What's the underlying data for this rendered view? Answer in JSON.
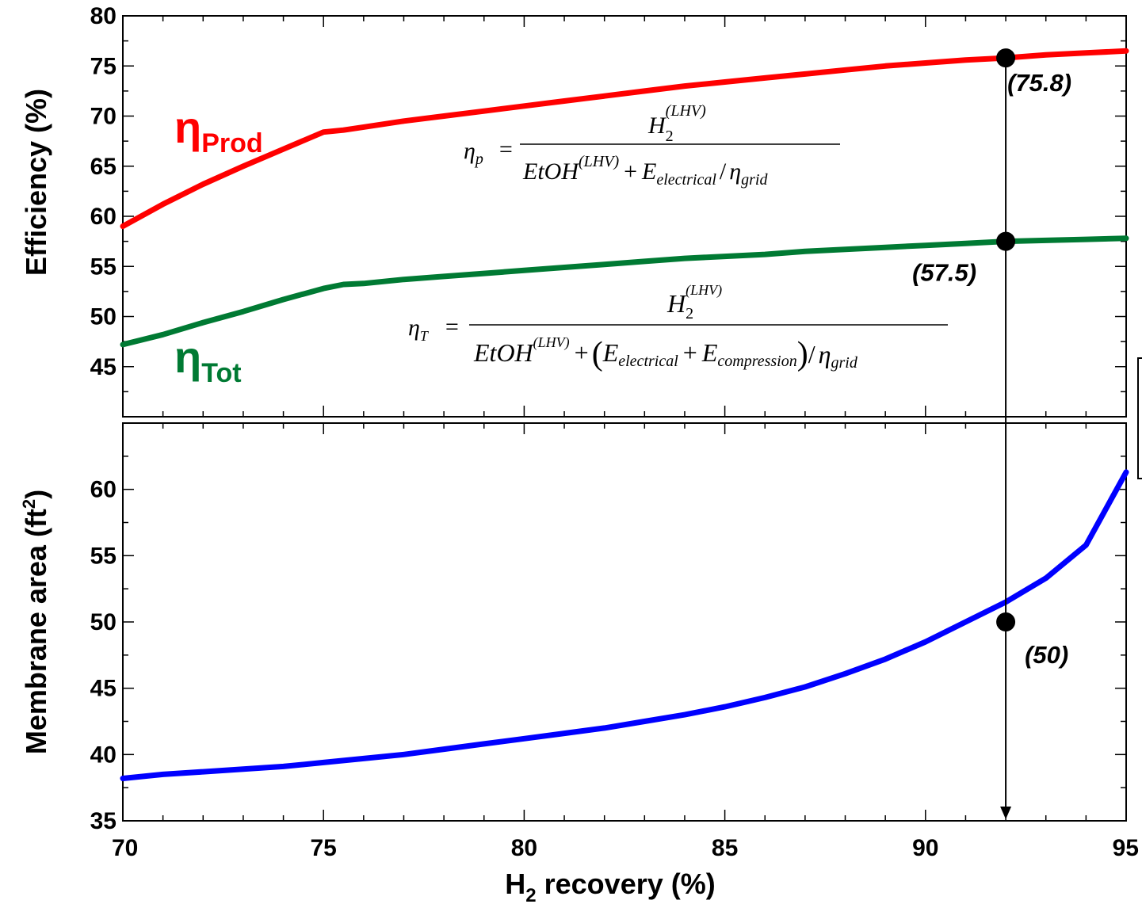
{
  "chart_data": [
    {
      "type": "line",
      "panel": "top",
      "title": "",
      "xlabel": "",
      "ylabel": "Efficiency (%)",
      "xlim": [
        70,
        95
      ],
      "ylim": [
        40,
        80
      ],
      "y_ticks": [
        "45",
        "50",
        "55",
        "60",
        "65",
        "70",
        "75",
        "80"
      ],
      "grid": false,
      "series": [
        {
          "name": "ηProd",
          "label_main": "η",
          "label_sub": "Prod",
          "color": "#ff0000",
          "x": [
            70,
            71,
            72,
            73,
            74,
            75,
            75.5,
            76,
            77,
            78,
            79,
            80,
            81,
            82,
            83,
            84,
            85,
            86,
            87,
            88,
            89,
            90,
            91,
            92,
            93,
            94,
            95
          ],
          "y": [
            59,
            61.2,
            63.2,
            65,
            66.7,
            68.4,
            68.6,
            68.9,
            69.5,
            70,
            70.5,
            71,
            71.5,
            72,
            72.5,
            73,
            73.4,
            73.8,
            74.2,
            74.6,
            75,
            75.3,
            75.6,
            75.8,
            76.1,
            76.3,
            76.5
          ]
        },
        {
          "name": "ηTot",
          "label_main": "η",
          "label_sub": "Tot",
          "color": "#007a33",
          "x": [
            70,
            71,
            72,
            73,
            74,
            75,
            75.5,
            76,
            77,
            78,
            79,
            80,
            81,
            82,
            83,
            84,
            85,
            86,
            87,
            88,
            89,
            90,
            91,
            92,
            93,
            94,
            95
          ],
          "y": [
            47.2,
            48.2,
            49.4,
            50.5,
            51.7,
            52.8,
            53.2,
            53.3,
            53.7,
            54,
            54.3,
            54.6,
            54.9,
            55.2,
            55.5,
            55.8,
            56,
            56.2,
            56.5,
            56.7,
            56.9,
            57.1,
            57.3,
            57.5,
            57.6,
            57.7,
            57.8
          ]
        }
      ]
    },
    {
      "type": "line",
      "panel": "bottom",
      "title": "",
      "xlabel_main": "H",
      "xlabel_sub": "2",
      "xlabel_rest": " recovery (%)",
      "ylabel_main": "Membrane area (ft",
      "ylabel_sup": "2",
      "ylabel_end": ")",
      "xlim": [
        70,
        95
      ],
      "ylim": [
        35,
        65
      ],
      "x_ticks": [
        "70",
        "75",
        "80",
        "85",
        "90",
        "95"
      ],
      "y_ticks": [
        "35",
        "40",
        "45",
        "50",
        "55",
        "60"
      ],
      "grid": false,
      "series": [
        {
          "name": "Membrane area",
          "color": "#0000ff",
          "x": [
            70,
            71,
            72,
            73,
            74,
            75,
            76,
            77,
            78,
            79,
            80,
            81,
            82,
            83,
            84,
            85,
            86,
            87,
            88,
            89,
            90,
            91,
            92,
            93,
            94,
            95
          ],
          "y": [
            38.2,
            38.5,
            38.7,
            38.9,
            39.1,
            39.4,
            39.7,
            40,
            40.4,
            40.8,
            41.2,
            41.6,
            42,
            42.5,
            43,
            43.6,
            44.3,
            45.1,
            46.1,
            47.2,
            48.5,
            50,
            51.5,
            53.3,
            55.8,
            61.3
          ]
        }
      ]
    }
  ],
  "marker": {
    "x": 92,
    "prod_value": 75.8,
    "tot_value": 57.5,
    "area_value": 50,
    "prod_label": "(75.8)",
    "tot_label": "(57.5)",
    "area_label": "(50)"
  },
  "equations": {
    "eta_p": {
      "lhs": "η",
      "lhs_sub": "p",
      "eq": "=",
      "num_main": "H",
      "num_sub": "2",
      "num_sup": "(LHV)",
      "den1": "EtOH",
      "den1_sup": "(LHV)",
      "den_plus": "+",
      "den2": "E",
      "den2_sub": "electrical",
      "den_div": "/",
      "den3": "η",
      "den3_sub": "grid"
    },
    "eta_t": {
      "lhs": "η",
      "lhs_sub": "T",
      "eq": "=",
      "num_main": "H",
      "num_sub": "2",
      "num_sup": "(LHV)",
      "den1": "EtOH",
      "den1_sup": "(LHV)",
      "den_plus": "+",
      "paren_open": "(",
      "den2": "E",
      "den2_sub": "electrical",
      "den_plus2": "+",
      "den3": "E",
      "den3_sub": "compression",
      "paren_close": ")",
      "den_div": "/",
      "den4": "η",
      "den4_sub": "grid"
    }
  }
}
